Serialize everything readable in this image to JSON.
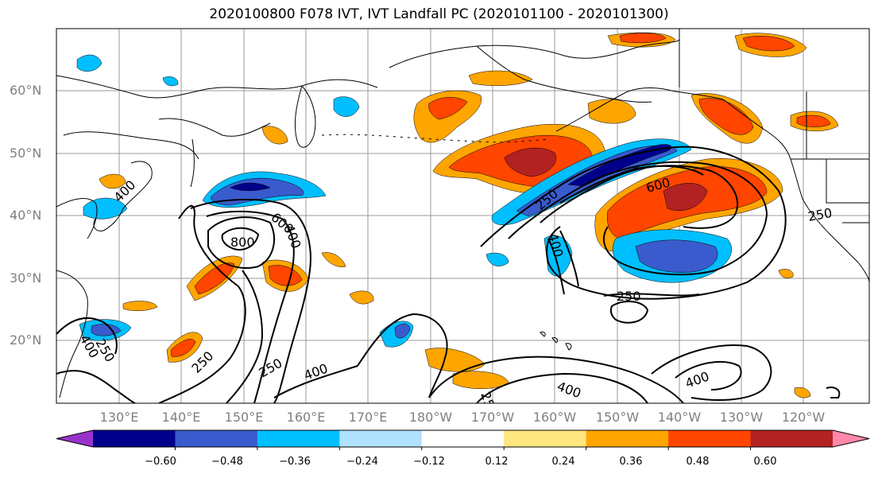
{
  "title": "2020100800 F078 IVT, IVT Landfall PC (2020101100 - 2020101300)",
  "lat_labels": [
    "60°N",
    "50°N",
    "40°N",
    "30°N",
    "20°N"
  ],
  "lon_labels": [
    "130°E",
    "140°E",
    "150°E",
    "160°E",
    "170°E",
    "180°W",
    "170°W",
    "160°W",
    "150°W",
    "140°W",
    "130°W",
    "120°W"
  ],
  "contour_labels": [
    "250",
    "400",
    "600",
    "800",
    "600",
    "400",
    "250",
    "250",
    "400",
    "400",
    "250",
    "400",
    "600",
    "250",
    "250",
    "400",
    "250",
    "400"
  ],
  "colorbar": {
    "ticks": [
      "−0.60",
      "−0.48",
      "−0.36",
      "−0.24",
      "−0.12",
      "0.12",
      "0.24",
      "0.36",
      "0.48",
      "0.60"
    ],
    "colors": [
      "#9932cc",
      "#00008b",
      "#3a5bcd",
      "#00bfff",
      "#b0e2ff",
      "#ffffff",
      "#ffe680",
      "#ffa500",
      "#ff4500",
      "#b22222",
      "#ff88aa"
    ]
  }
}
